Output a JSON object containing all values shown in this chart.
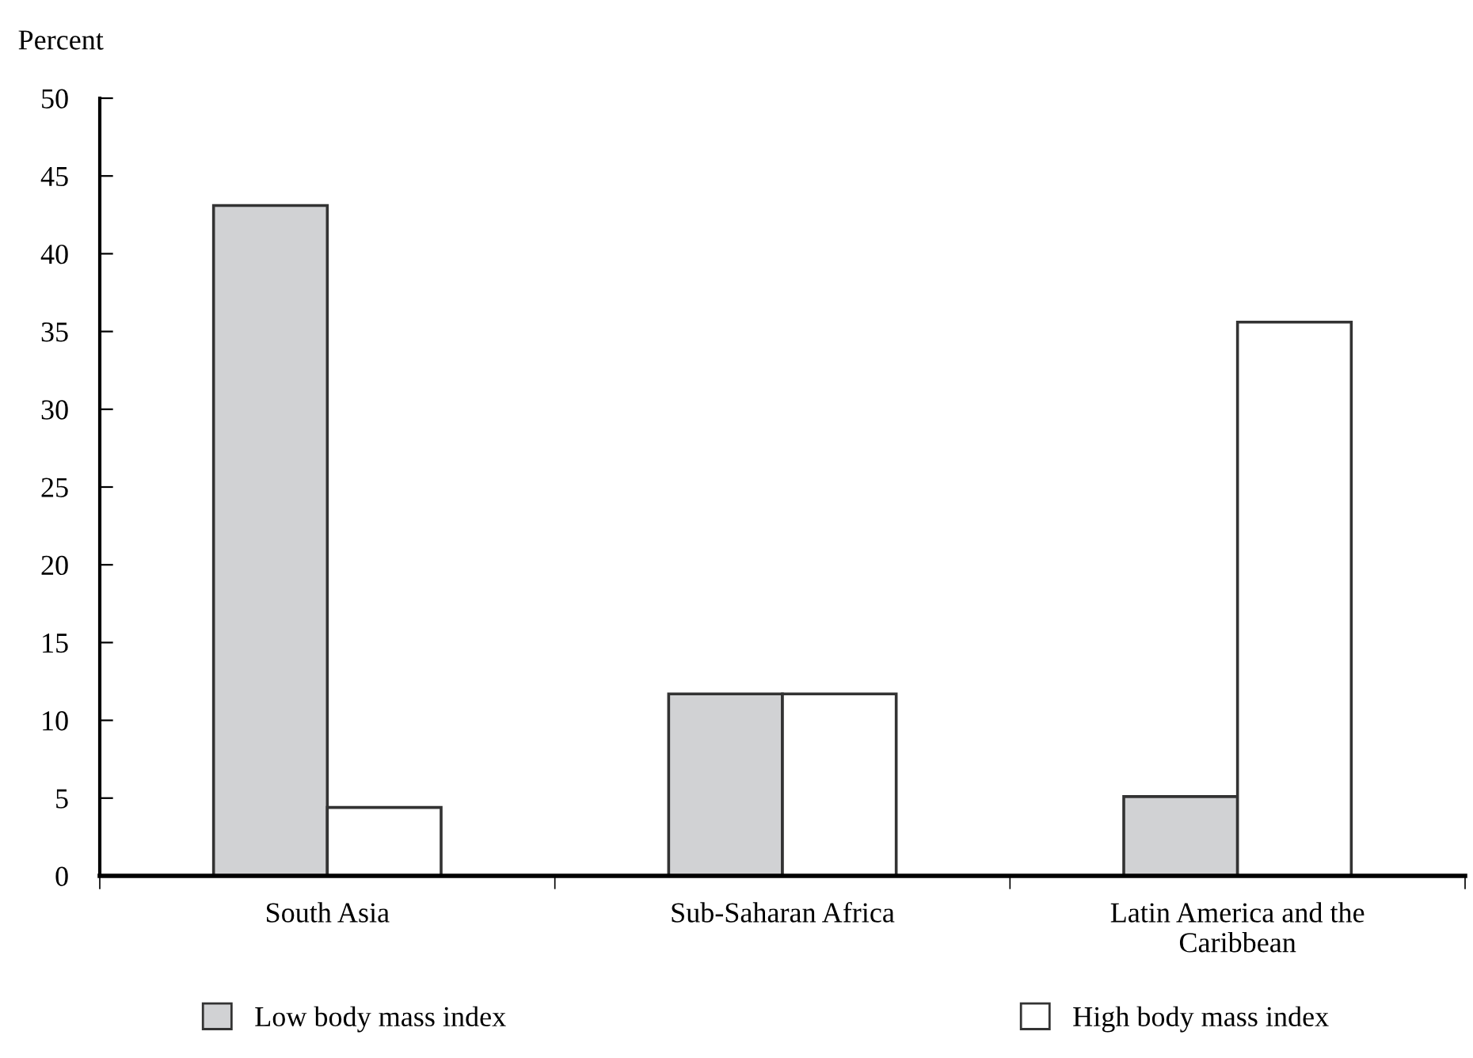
{
  "chart_data": {
    "type": "bar",
    "ylabel": "Percent",
    "categories": [
      "South Asia",
      "Sub-Saharan Africa",
      "Latin America and the\nCaribbean"
    ],
    "series": [
      {
        "name": "Low body mass index",
        "color": "#d1d2d4",
        "values": [
          43.1,
          11.7,
          5.1
        ]
      },
      {
        "name": "High body mass index",
        "color": "#ffffff",
        "values": [
          4.4,
          11.7,
          35.6
        ]
      }
    ],
    "ylim": [
      0,
      50
    ],
    "yticks": [
      0,
      5,
      10,
      15,
      20,
      25,
      30,
      35,
      40,
      45,
      50
    ],
    "grid": false,
    "legend": "bottom"
  }
}
